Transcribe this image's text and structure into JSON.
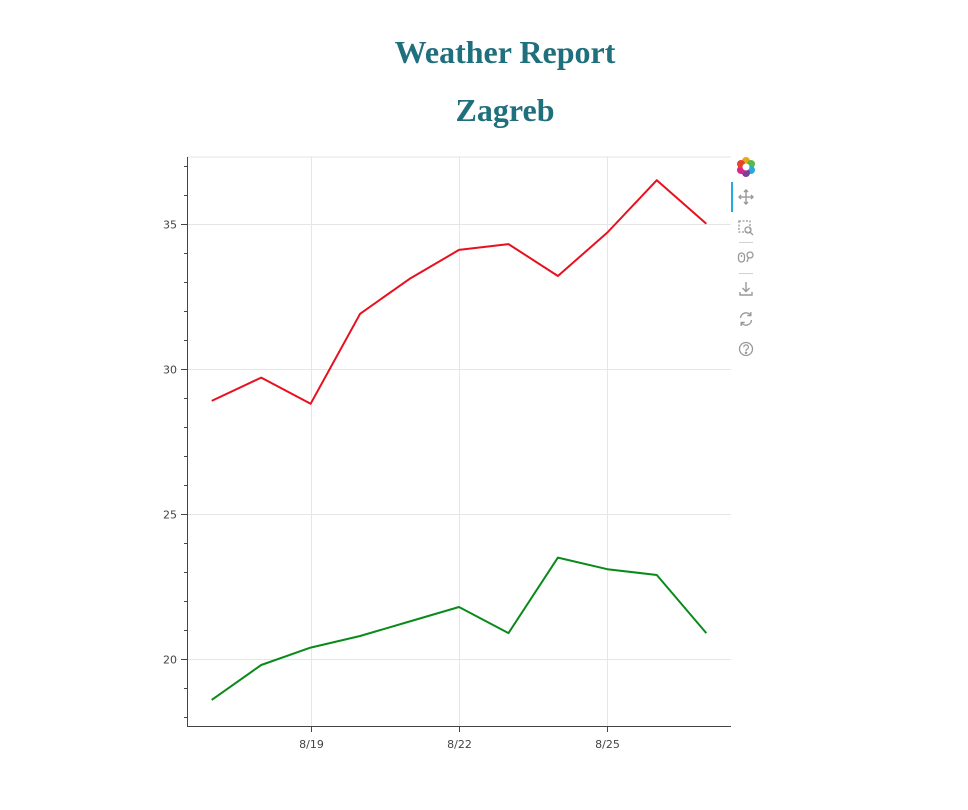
{
  "header": {
    "title": "Weather Report",
    "subtitle": "Zagreb"
  },
  "toolbar": {
    "tools": [
      {
        "icon": "bokeh-logo-icon"
      },
      {
        "icon": "pan-icon",
        "active": true
      },
      {
        "icon": "box-zoom-icon"
      },
      {
        "icon": "wheel-zoom-icon"
      },
      {
        "icon": "save-icon"
      },
      {
        "icon": "reset-icon"
      },
      {
        "icon": "help-icon"
      }
    ]
  },
  "chart_data": {
    "type": "line",
    "x": [
      "8/17",
      "8/18",
      "8/19",
      "8/20",
      "8/21",
      "8/22",
      "8/23",
      "8/24",
      "8/25",
      "8/26",
      "8/27"
    ],
    "x_ticks": [
      "8/19",
      "8/22",
      "8/25"
    ],
    "y_ticks": [
      20,
      25,
      30,
      35
    ],
    "xlim": [
      "8/16.5",
      "8/27.5"
    ],
    "ylim": [
      17.7,
      37.3
    ],
    "grid": true,
    "series": [
      {
        "color": "#e8101d",
        "values": [
          28.9,
          29.7,
          28.8,
          31.9,
          33.1,
          34.1,
          34.3,
          33.2,
          34.7,
          36.5,
          35.0
        ]
      },
      {
        "color": "#0a8a1a",
        "values": [
          18.6,
          19.8,
          20.4,
          20.8,
          21.3,
          21.8,
          20.9,
          23.5,
          23.1,
          22.9,
          20.9
        ]
      }
    ]
  }
}
